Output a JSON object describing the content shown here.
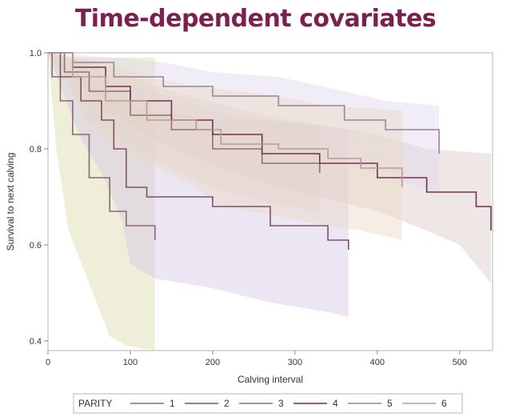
{
  "slide": {
    "title": "Time-dependent covariates",
    "title_color": "#7b2150"
  },
  "chart_data": {
    "type": "line",
    "subtype": "step-survival-with-confidence-bands",
    "title": "",
    "xlabel": "Calving interval",
    "ylabel": "Survival to next calving",
    "xlim": [
      0,
      540
    ],
    "ylim": [
      0.38,
      1.0
    ],
    "x_ticks": [
      0,
      100,
      200,
      300,
      400,
      500
    ],
    "y_ticks": [
      0.4,
      0.6,
      0.8,
      1.0
    ],
    "y_tick_labels": [
      "0.4",
      "0.6",
      "0.8",
      "1.0"
    ],
    "grid": false,
    "legend": {
      "title": "PARITY",
      "placement": "bottom"
    },
    "series": [
      {
        "name": "1",
        "line_color": "#8c6674",
        "band_color": "#dcdcaa",
        "points": [
          [
            0,
            1.0
          ],
          [
            5,
            0.95
          ],
          [
            15,
            0.9
          ],
          [
            30,
            0.83
          ],
          [
            50,
            0.74
          ],
          [
            75,
            0.67
          ],
          [
            95,
            0.64
          ],
          [
            130,
            0.61
          ]
        ],
        "band_upper": [
          [
            0,
            1.0
          ],
          [
            10,
            0.99
          ],
          [
            30,
            0.99
          ],
          [
            70,
            0.99
          ],
          [
            130,
            0.99
          ]
        ],
        "band_lower": [
          [
            0,
            1.0
          ],
          [
            5,
            0.9
          ],
          [
            10,
            0.8
          ],
          [
            25,
            0.63
          ],
          [
            50,
            0.52
          ],
          [
            75,
            0.41
          ],
          [
            95,
            0.39
          ],
          [
            130,
            0.38
          ]
        ]
      },
      {
        "name": "2",
        "line_color": "#7e5266",
        "band_color": "#d3c6e6",
        "points": [
          [
            0,
            1.0
          ],
          [
            15,
            0.95
          ],
          [
            40,
            0.9
          ],
          [
            65,
            0.86
          ],
          [
            80,
            0.8
          ],
          [
            95,
            0.72
          ],
          [
            120,
            0.7
          ],
          [
            200,
            0.68
          ],
          [
            270,
            0.64
          ],
          [
            340,
            0.61
          ],
          [
            365,
            0.59
          ]
        ],
        "band_upper": [
          [
            0,
            1.0
          ],
          [
            60,
            0.97
          ],
          [
            90,
            0.91
          ],
          [
            130,
            0.88
          ],
          [
            210,
            0.86
          ],
          [
            270,
            0.86
          ],
          [
            365,
            0.84
          ]
        ],
        "band_lower": [
          [
            0,
            1.0
          ],
          [
            40,
            0.82
          ],
          [
            65,
            0.75
          ],
          [
            90,
            0.65
          ],
          [
            100,
            0.56
          ],
          [
            130,
            0.53
          ],
          [
            200,
            0.51
          ],
          [
            270,
            0.48
          ],
          [
            340,
            0.46
          ],
          [
            365,
            0.45
          ]
        ]
      },
      {
        "name": "3",
        "line_color": "#8e6e80",
        "band_color": "#e1d1d6",
        "points": [
          [
            0,
            1.0
          ],
          [
            20,
            0.96
          ],
          [
            50,
            0.92
          ],
          [
            100,
            0.87
          ],
          [
            150,
            0.84
          ],
          [
            200,
            0.8
          ],
          [
            260,
            0.77
          ],
          [
            330,
            0.75
          ]
        ],
        "band_upper": [
          [
            0,
            1.0
          ],
          [
            50,
            0.97
          ],
          [
            100,
            0.93
          ],
          [
            150,
            0.91
          ],
          [
            200,
            0.88
          ],
          [
            260,
            0.86
          ],
          [
            330,
            0.85
          ]
        ],
        "band_lower": [
          [
            0,
            1.0
          ],
          [
            50,
            0.86
          ],
          [
            100,
            0.8
          ],
          [
            150,
            0.76
          ],
          [
            200,
            0.72
          ],
          [
            260,
            0.69
          ],
          [
            330,
            0.67
          ]
        ]
      },
      {
        "name": "4",
        "line_color": "#74304f",
        "band_color": "#dccac8",
        "points": [
          [
            0,
            1.0
          ],
          [
            30,
            0.97
          ],
          [
            70,
            0.93
          ],
          [
            100,
            0.9
          ],
          [
            150,
            0.86
          ],
          [
            200,
            0.83
          ],
          [
            260,
            0.79
          ],
          [
            330,
            0.77
          ],
          [
            400,
            0.74
          ],
          [
            460,
            0.71
          ],
          [
            520,
            0.68
          ],
          [
            538,
            0.63
          ]
        ],
        "band_upper": [
          [
            0,
            1.0
          ],
          [
            70,
            0.97
          ],
          [
            150,
            0.92
          ],
          [
            260,
            0.87
          ],
          [
            400,
            0.83
          ],
          [
            460,
            0.8
          ],
          [
            538,
            0.79
          ]
        ],
        "band_lower": [
          [
            0,
            1.0
          ],
          [
            70,
            0.88
          ],
          [
            150,
            0.8
          ],
          [
            260,
            0.73
          ],
          [
            400,
            0.67
          ],
          [
            460,
            0.63
          ],
          [
            500,
            0.6
          ],
          [
            538,
            0.52
          ]
        ]
      },
      {
        "name": "5",
        "line_color": "#9b8496",
        "band_color": "#ddd6ea",
        "points": [
          [
            0,
            1.0
          ],
          [
            30,
            0.98
          ],
          [
            80,
            0.95
          ],
          [
            140,
            0.93
          ],
          [
            200,
            0.91
          ],
          [
            280,
            0.89
          ],
          [
            360,
            0.86
          ],
          [
            410,
            0.84
          ],
          [
            475,
            0.79
          ]
        ],
        "band_upper": [
          [
            0,
            1.0
          ],
          [
            80,
            0.99
          ],
          [
            140,
            0.98
          ],
          [
            200,
            0.96
          ],
          [
            280,
            0.95
          ],
          [
            360,
            0.92
          ],
          [
            410,
            0.9
          ],
          [
            475,
            0.89
          ]
        ],
        "band_lower": [
          [
            0,
            1.0
          ],
          [
            80,
            0.9
          ],
          [
            140,
            0.87
          ],
          [
            200,
            0.84
          ],
          [
            280,
            0.81
          ],
          [
            360,
            0.77
          ],
          [
            410,
            0.74
          ],
          [
            475,
            0.71
          ]
        ]
      },
      {
        "name": "6",
        "line_color": "#b89c92",
        "band_color": "#ead9c4",
        "points": [
          [
            0,
            1.0
          ],
          [
            30,
            0.95
          ],
          [
            70,
            0.9
          ],
          [
            120,
            0.86
          ],
          [
            180,
            0.84
          ],
          [
            210,
            0.81
          ],
          [
            280,
            0.8
          ],
          [
            340,
            0.78
          ],
          [
            380,
            0.76
          ],
          [
            430,
            0.72
          ]
        ],
        "band_upper": [
          [
            0,
            1.0
          ],
          [
            70,
            0.98
          ],
          [
            120,
            0.95
          ],
          [
            180,
            0.93
          ],
          [
            280,
            0.91
          ],
          [
            340,
            0.89
          ],
          [
            430,
            0.88
          ]
        ],
        "band_lower": [
          [
            0,
            1.0
          ],
          [
            70,
            0.82
          ],
          [
            120,
            0.77
          ],
          [
            180,
            0.72
          ],
          [
            210,
            0.68
          ],
          [
            280,
            0.66
          ],
          [
            340,
            0.64
          ],
          [
            380,
            0.63
          ],
          [
            430,
            0.61
          ]
        ]
      }
    ]
  }
}
